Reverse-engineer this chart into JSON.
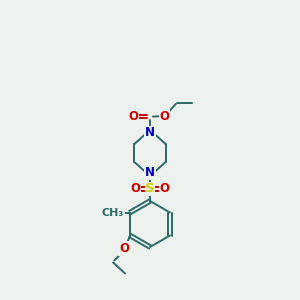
{
  "bg_color": "#eef2ee",
  "bond_color": "#2a6a6a",
  "N_color": "#0000cc",
  "O_color": "#cc0000",
  "S_color": "#cccc00",
  "line_width": 1.4,
  "font_size": 8.5,
  "xlim": [
    0,
    10
  ],
  "ylim": [
    0,
    15
  ]
}
